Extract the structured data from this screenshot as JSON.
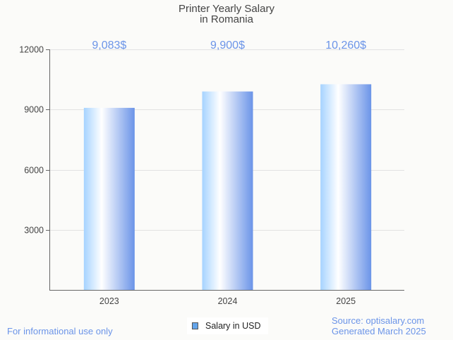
{
  "chart_data": {
    "type": "bar",
    "title": [
      "Printer Yearly Salary",
      "in Romania"
    ],
    "categories": [
      "2023",
      "2024",
      "2025"
    ],
    "series": [
      {
        "name": "Salary in USD",
        "values": [
          9083,
          9900,
          10260
        ]
      }
    ],
    "data_labels": [
      "9,083$",
      "9,900$",
      "10,260$"
    ],
    "yticks": [
      3000,
      6000,
      9000,
      12000
    ],
    "ylim": [
      0,
      12000
    ],
    "grid": true,
    "legend": "bottom-center",
    "colors": {
      "bar_left": "#a6d3ff",
      "bar_mid": "#ffffff",
      "bar_right": "#6b94e8",
      "label": "#6b94e8"
    }
  },
  "footer": {
    "disclaimer": "For informational use only",
    "source": "Source: optisalary.com",
    "generated": "Generated March 2025"
  }
}
